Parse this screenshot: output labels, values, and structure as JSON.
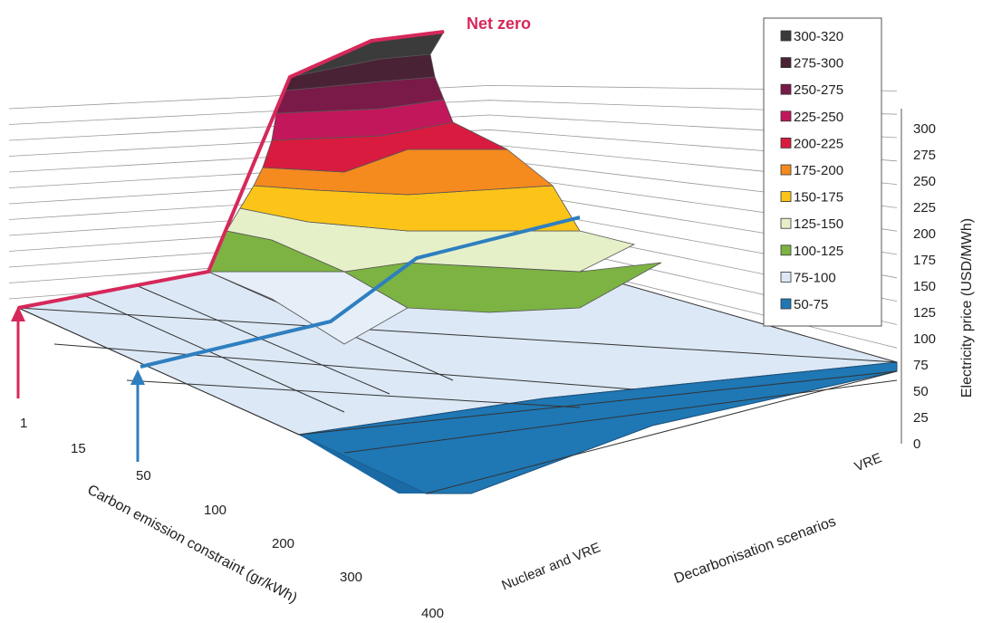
{
  "chart_data": {
    "type": "surface",
    "annotation": "Net zero",
    "zlabel": "Electricity price (USD/MWh)",
    "xlabel": "Carbon emission constraint (gr/kWh)",
    "ylabel": "Decarbonisation scenarios",
    "x_categories": [
      "1",
      "15",
      "50",
      "100",
      "200",
      "300",
      "400"
    ],
    "y_categories": [
      "Nuclear and VRE",
      "VRE"
    ],
    "z_ticks": [
      "0",
      "25",
      "50",
      "75",
      "100",
      "125",
      "150",
      "175",
      "200",
      "225",
      "250",
      "275",
      "300"
    ],
    "zlim": [
      0,
      320
    ],
    "legend": [
      {
        "label": "300-320",
        "color": "#3b3b3b"
      },
      {
        "label": "275-300",
        "color": "#4a2236"
      },
      {
        "label": "250-275",
        "color": "#7a1a48"
      },
      {
        "label": "225-250",
        "color": "#c2185b"
      },
      {
        "label": "200-225",
        "color": "#d81b3f"
      },
      {
        "label": "175-200",
        "color": "#f58a1f"
      },
      {
        "label": "150-175",
        "color": "#fcc419"
      },
      {
        "label": "125-150",
        "color": "#e6f0c8"
      },
      {
        "label": "100-125",
        "color": "#7cb342"
      },
      {
        "label": "75-100",
        "color": "#dce8f5"
      },
      {
        "label": "50-75",
        "color": "#1f77b4"
      }
    ],
    "highlight_colors": {
      "net_zero": "#d6285a",
      "constraint_50": "#2e7fc0"
    }
  }
}
